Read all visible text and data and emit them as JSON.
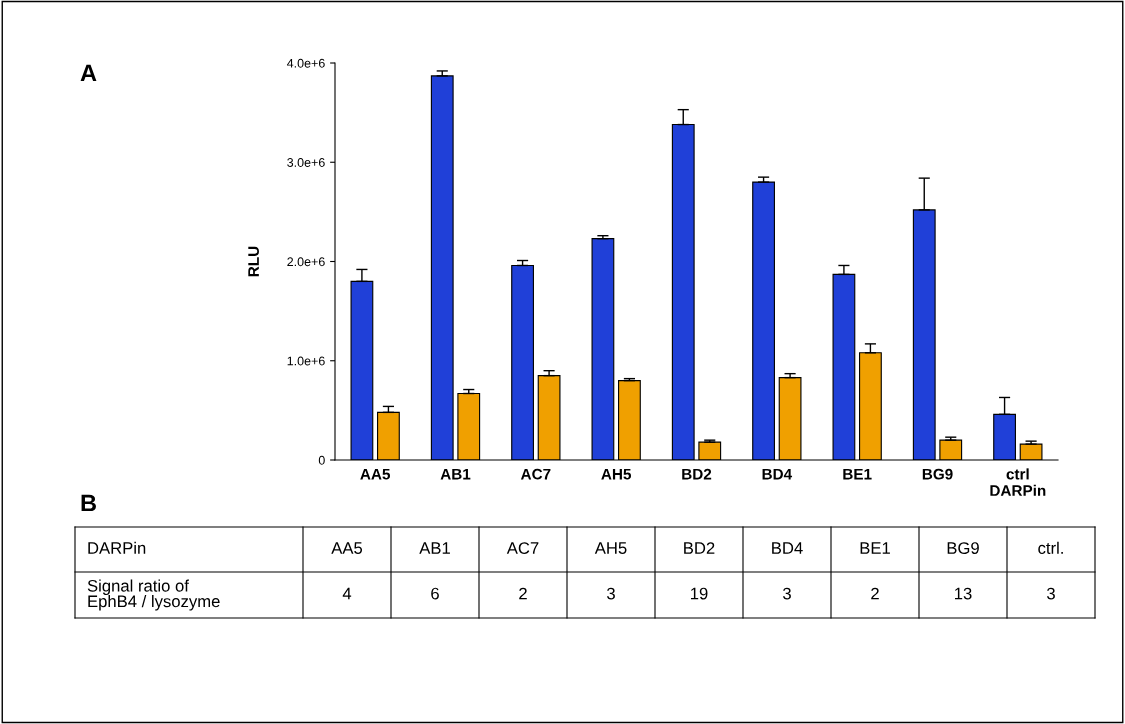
{
  "chart_data": [
    {
      "type": "bar",
      "annotations": [
        "A"
      ],
      "ylabel": "RLU",
      "categories": [
        "AA5",
        "AB1",
        "AC7",
        "AH5",
        "BD2",
        "BD4",
        "BE1",
        "BG9",
        "ctrl\nDARPin"
      ],
      "series": [
        {
          "color": "#2040d8",
          "values": [
            1800000,
            3870000,
            1960000,
            2230000,
            3380000,
            2800000,
            1870000,
            2520000,
            460000
          ],
          "errors": [
            [
              1800000,
              1920000
            ],
            [
              3870000,
              3920000
            ],
            [
              1960000,
              2010000
            ],
            [
              2230000,
              2260000
            ],
            [
              3380000,
              3530000
            ],
            [
              2800000,
              2850000
            ],
            [
              1870000,
              1960000
            ],
            [
              2520000,
              2840000
            ],
            [
              460000,
              630000
            ]
          ]
        },
        {
          "color": "#f0a000",
          "values": [
            480000,
            670000,
            850000,
            800000,
            180000,
            830000,
            1080000,
            200000,
            160000
          ],
          "errors": [
            [
              480000,
              540000
            ],
            [
              670000,
              710000
            ],
            [
              850000,
              900000
            ],
            [
              800000,
              820000
            ],
            [
              180000,
              200000
            ],
            [
              830000,
              870000
            ],
            [
              1080000,
              1170000
            ],
            [
              200000,
              230000
            ],
            [
              160000,
              190000
            ]
          ]
        }
      ],
      "ylim": [
        0,
        4000000
      ],
      "yticks": [
        0,
        {
          "value": 1000000,
          "label": "1.0e+6"
        },
        {
          "value": 2000000,
          "label": "2.0e+6"
        },
        {
          "value": 3000000,
          "label": "3.0e+6"
        },
        {
          "value": 4000000,
          "label": "4.0e+6"
        }
      ],
      "grid": false,
      "legend": false
    },
    {
      "type": "other",
      "title": "B",
      "annotations": [
        "DARPin",
        "AA5",
        "AB1",
        "AC7",
        "AH5",
        "BD2",
        "BD4",
        "BE1",
        "BG9",
        "ctrl.",
        "Signal ratio of\nEphB4 / lysozyme",
        "4",
        "6",
        "2",
        "3",
        "19",
        "3",
        "2",
        "13",
        "3"
      ]
    }
  ]
}
